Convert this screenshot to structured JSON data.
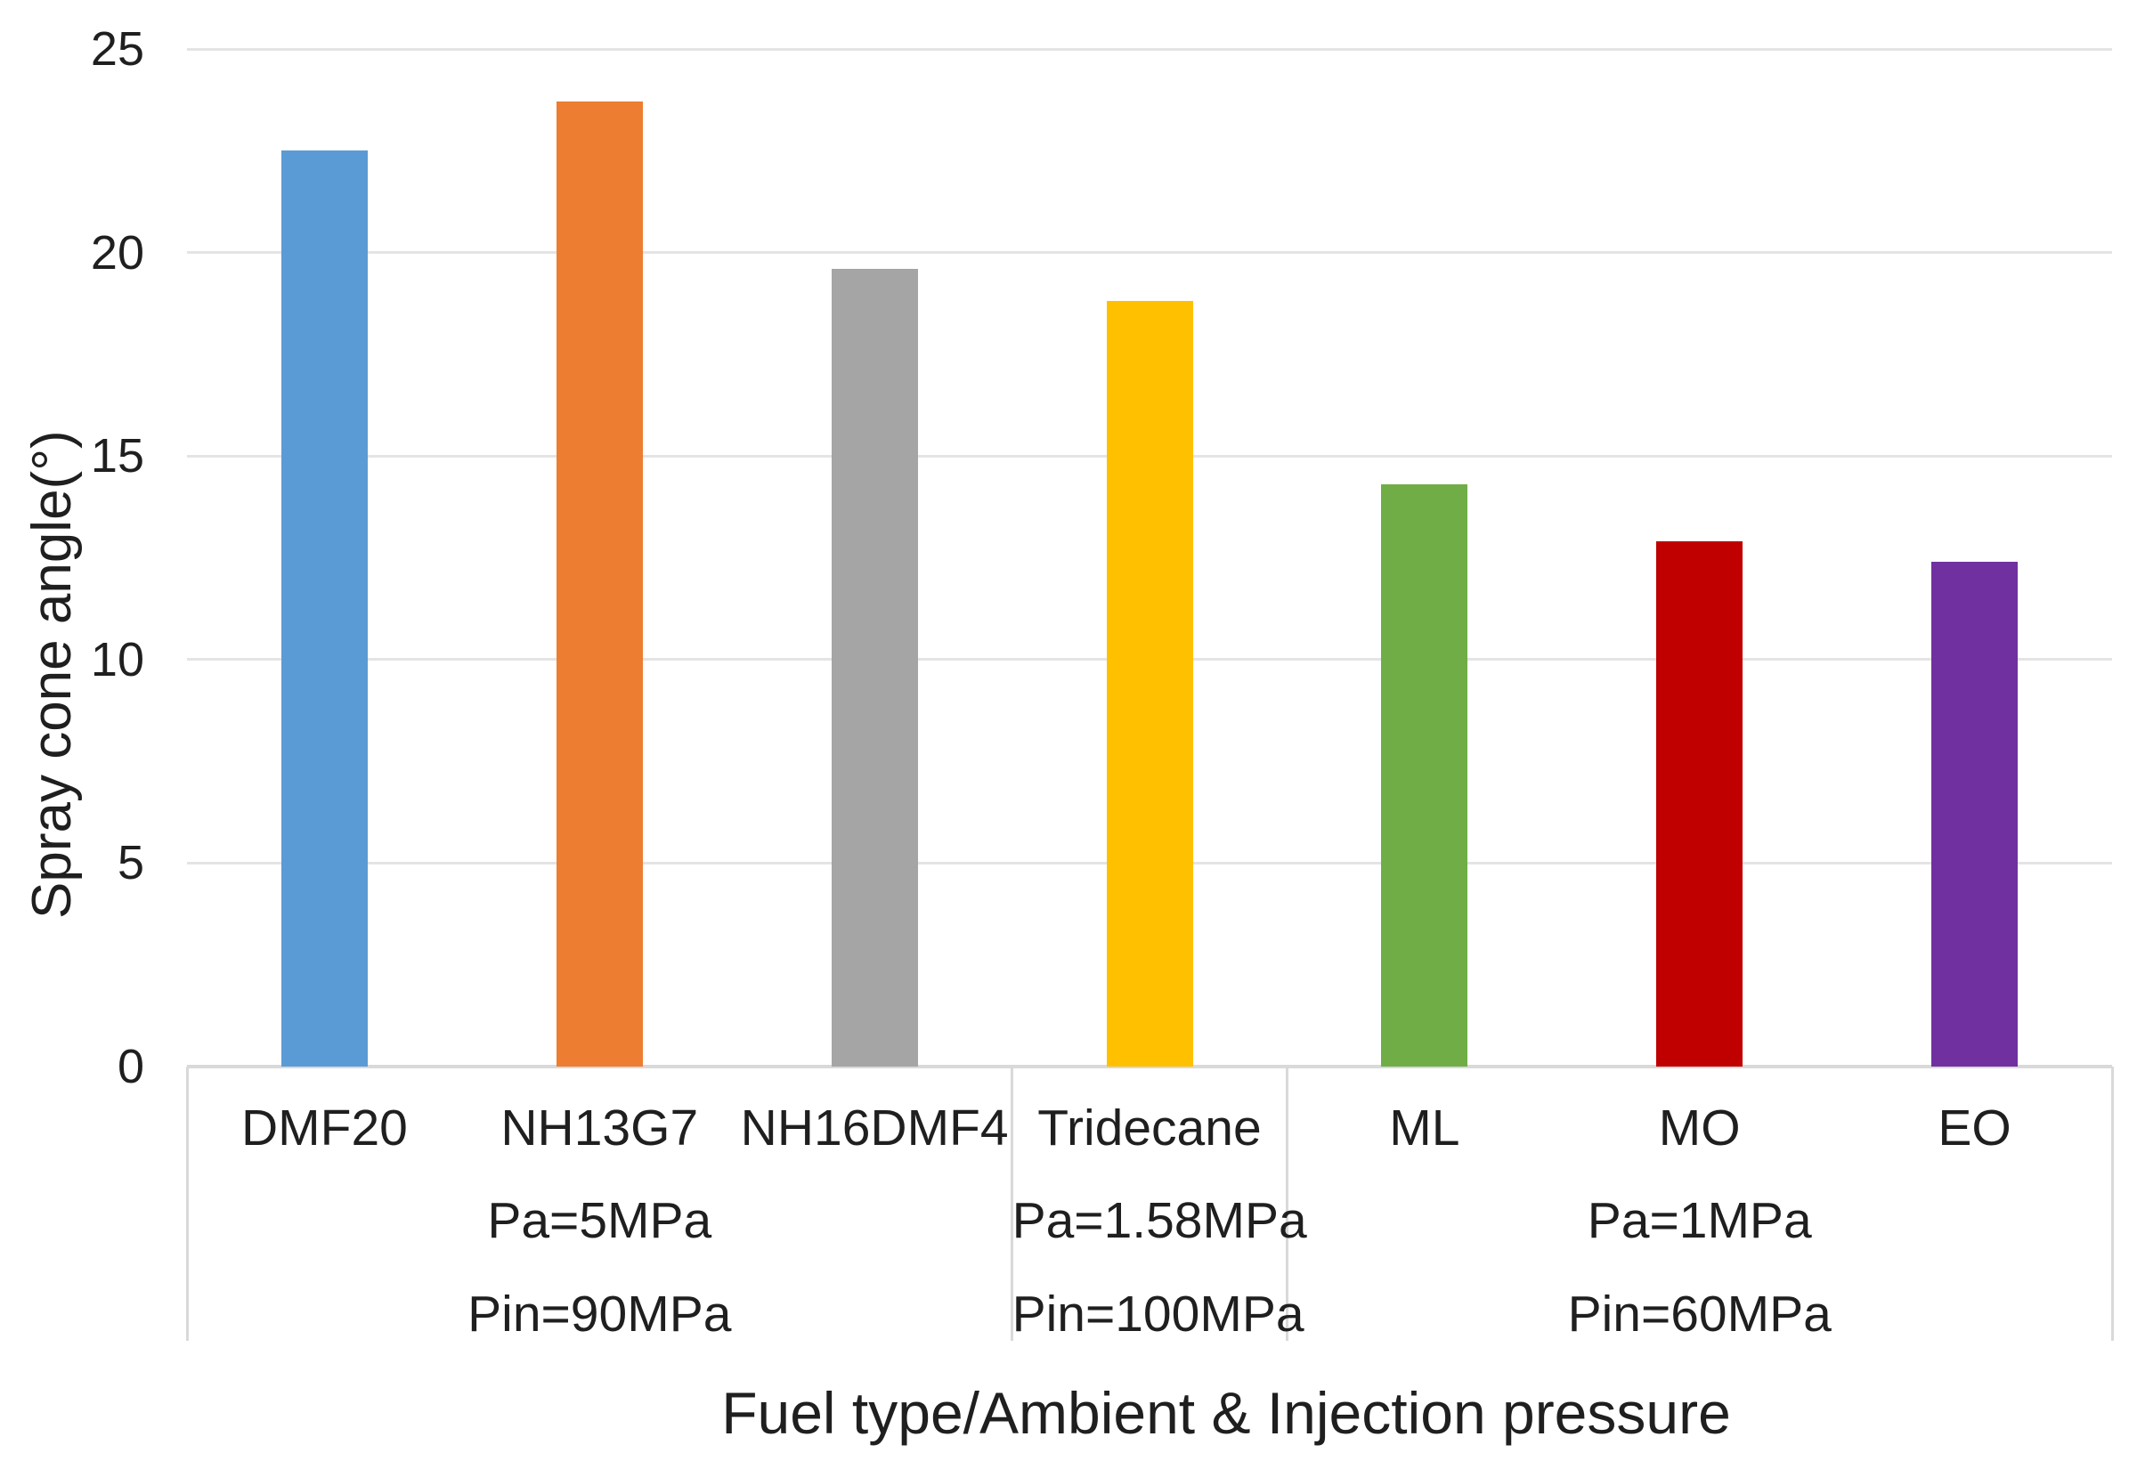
{
  "chart_data": {
    "type": "bar",
    "title": "",
    "xlabel": "Fuel type/Ambient & Injection pressure",
    "ylabel": "Spray cone angle(°)",
    "ylim": [
      0,
      25
    ],
    "yticks": [
      0,
      5,
      10,
      15,
      20,
      25
    ],
    "grid": "horizontal",
    "legend": "none",
    "categories": [
      "DMF20",
      "NH13G7",
      "NH16DMF4",
      "Tridecane",
      "ML",
      "MO",
      "EO"
    ],
    "values": [
      22.5,
      23.7,
      19.6,
      18.8,
      14.3,
      12.9,
      12.4
    ],
    "bar_colors": [
      "#5B9BD5",
      "#ED7D31",
      "#A5A5A5",
      "#FFC000",
      "#70AD47",
      "#C00000",
      "#7030A0"
    ],
    "groups": [
      {
        "pa": "Pa=5MPa",
        "pin": "Pin=90MPa",
        "span": [
          0,
          3
        ]
      },
      {
        "pa": "Pa=1.58MPa",
        "pin": "Pin=100MPa",
        "span": [
          3,
          4
        ]
      },
      {
        "pa": "Pa=1MPa",
        "pin": "Pin=60MPa",
        "span": [
          4,
          7
        ]
      }
    ]
  }
}
